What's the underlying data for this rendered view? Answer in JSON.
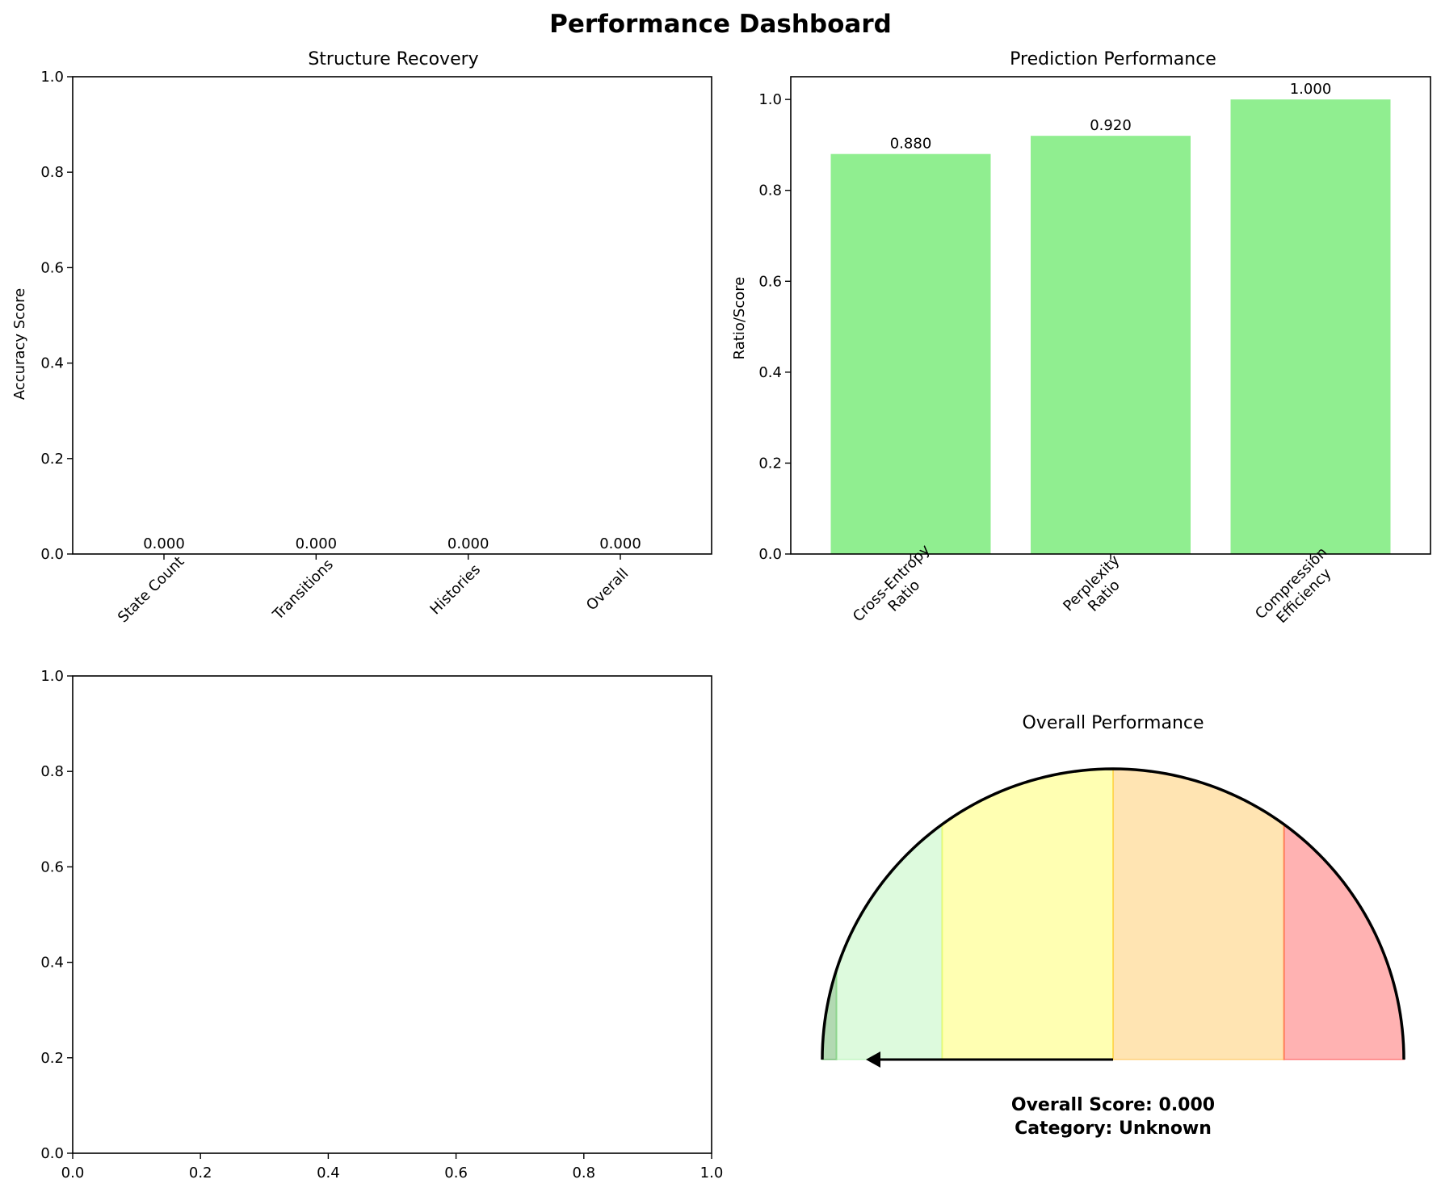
{
  "figure": {
    "title": "Performance Dashboard"
  },
  "chart_data": [
    {
      "id": "structure",
      "type": "bar",
      "title": "Structure Recovery",
      "xlabel": "",
      "ylabel": "Accuracy Score",
      "categories": [
        "State Count",
        "Transitions",
        "Histories",
        "Overall"
      ],
      "values": [
        0.0,
        0.0,
        0.0,
        0.0
      ],
      "value_labels": [
        "0.000",
        "0.000",
        "0.000",
        "0.000"
      ],
      "ylim": [
        0,
        1
      ],
      "yticks": [
        "0.0",
        "0.2",
        "0.4",
        "0.6",
        "0.8",
        "1.0"
      ],
      "color": "#90ee90",
      "grid": false
    },
    {
      "id": "prediction",
      "type": "bar",
      "title": "Prediction Performance",
      "xlabel": "",
      "ylabel": "Ratio/Score",
      "categories": [
        [
          "Cross-Entropy",
          "Ratio"
        ],
        [
          "Perplexity",
          "Ratio"
        ],
        [
          "Compression",
          "Efficiency"
        ]
      ],
      "values": [
        0.88,
        0.92,
        1.0
      ],
      "value_labels": [
        "0.880",
        "0.920",
        "1.000"
      ],
      "ylim": [
        0,
        1.05
      ],
      "yticks": [
        "0.0",
        "0.2",
        "0.4",
        "0.6",
        "0.8",
        "1.0"
      ],
      "color": "#90ee90",
      "grid": false
    },
    {
      "id": "empty",
      "type": "scatter",
      "title": "",
      "xlabel": "",
      "ylabel": "",
      "xlim": [
        0,
        1
      ],
      "ylim": [
        0,
        1
      ],
      "xticks": [
        "0.0",
        "0.2",
        "0.4",
        "0.6",
        "0.8",
        "1.0"
      ],
      "yticks": [
        "0.0",
        "0.2",
        "0.4",
        "0.6",
        "0.8",
        "1.0"
      ],
      "series": []
    },
    {
      "id": "gauge",
      "type": "gauge",
      "title": "Overall Performance",
      "value": 0.0,
      "score_text": "Overall Score: 0.000",
      "category_text": "Category: Unknown",
      "zones": [
        {
          "from": 0.9,
          "to": 1.0,
          "color": "#008000"
        },
        {
          "from": 0.7,
          "to": 0.9,
          "color": "#90ee90"
        },
        {
          "from": 0.5,
          "to": 0.7,
          "color": "#ffff00"
        },
        {
          "from": 0.3,
          "to": 0.5,
          "color": "#ffa500"
        },
        {
          "from": 0.0,
          "to": 0.3,
          "color": "#ff0000"
        }
      ]
    }
  ]
}
